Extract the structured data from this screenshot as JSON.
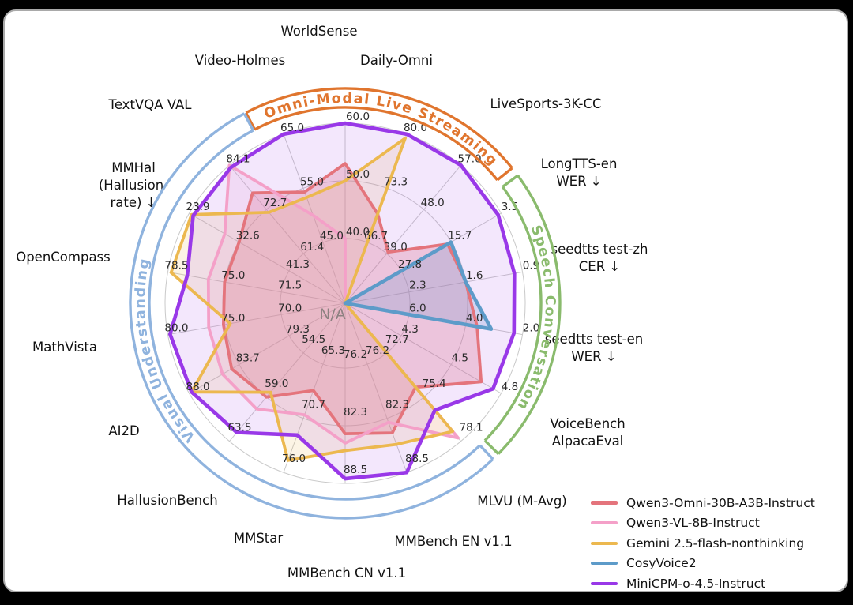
{
  "center_label": "N/A",
  "legend": {
    "items": [
      {
        "label": "Qwen3-Omni-30B-A3B-Instruct",
        "color": "#e4747c"
      },
      {
        "label": "Qwen3-VL-8B-Instruct",
        "color": "#f4a0c8"
      },
      {
        "label": "Gemini 2.5-flash-nonthinking",
        "color": "#ecb84f"
      },
      {
        "label": "CosyVoice2",
        "color": "#5d9bc9"
      },
      {
        "label": "MiniCPM-o-4.5-Instruct",
        "color": "#9938e8"
      }
    ]
  },
  "chart_data": {
    "type": "radar",
    "rings": 3,
    "center_label": "N/A",
    "axes": [
      {
        "label": "WorldSense",
        "label_lines": [
          "WorldSense"
        ],
        "ticks": [
          "60.0",
          "50.0",
          "40.0"
        ],
        "inverted": false
      },
      {
        "label": "Daily-Omni",
        "label_lines": [
          "Daily-Omni"
        ],
        "ticks": [
          "80.0",
          "73.3",
          "66.7"
        ],
        "inverted": false
      },
      {
        "label": "LiveSports-3K-CC",
        "label_lines": [
          "LiveSports-3K-CC"
        ],
        "ticks": [
          "57.0",
          "48.0",
          "39.0"
        ],
        "inverted": false
      },
      {
        "label": "LongTTS-en WER ↓",
        "label_lines": [
          "LongTTS-en",
          "WER ↓"
        ],
        "ticks": [
          "3.5",
          "15.7",
          "27.8"
        ],
        "inverted": true
      },
      {
        "label": "seedtts test-zh CER ↓",
        "label_lines": [
          "seedtts test-zh",
          "CER ↓"
        ],
        "ticks": [
          "0.9",
          "1.6",
          "2.3"
        ],
        "inverted": true
      },
      {
        "label": "seedtts test-en WER ↓",
        "label_lines": [
          "seedtts test-en",
          "WER ↓"
        ],
        "ticks": [
          "2.0",
          "4.0",
          "6.0"
        ],
        "inverted": true
      },
      {
        "label": "VoiceBench AlpacaEval",
        "label_lines": [
          "VoiceBench",
          "AlpacaEval"
        ],
        "ticks": [
          "4.8",
          "4.5",
          "4.3"
        ],
        "inverted": false
      },
      {
        "label": "MLVU (M-Avg)",
        "label_lines": [
          "MLVU (M-Avg)"
        ],
        "ticks": [
          "78.1",
          "75.4",
          "72.7"
        ],
        "inverted": false
      },
      {
        "label": "MMBench EN v1.1",
        "label_lines": [
          "MMBench EN v1.1"
        ],
        "ticks": [
          "88.5",
          "82.3",
          "76.2"
        ],
        "inverted": false
      },
      {
        "label": "MMBench CN v1.1",
        "label_lines": [
          "MMBench CN v1.1"
        ],
        "ticks": [
          "88.5",
          "82.3",
          "76.2"
        ],
        "inverted": false
      },
      {
        "label": "MMStar",
        "label_lines": [
          "MMStar"
        ],
        "ticks": [
          "76.0",
          "70.7",
          "65.3"
        ],
        "inverted": false
      },
      {
        "label": "HallusionBench",
        "label_lines": [
          "HallusionBench"
        ],
        "ticks": [
          "63.5",
          "59.0",
          "54.5"
        ],
        "inverted": false
      },
      {
        "label": "AI2D",
        "label_lines": [
          "AI2D"
        ],
        "ticks": [
          "88.0",
          "83.7",
          "79.3"
        ],
        "inverted": false
      },
      {
        "label": "MathVista",
        "label_lines": [
          "MathVista"
        ],
        "ticks": [
          "80.0",
          "75.0",
          "70.0"
        ],
        "inverted": false
      },
      {
        "label": "OpenCompass",
        "label_lines": [
          "OpenCompass"
        ],
        "ticks": [
          "78.5",
          "75.0",
          "71.5"
        ],
        "inverted": false
      },
      {
        "label": "MMHal (Hallusion-rate) ↓",
        "label_lines": [
          "MMHal",
          "(Hallusion-",
          "rate) ↓"
        ],
        "ticks": [
          "23.9",
          "32.6",
          "41.3"
        ],
        "inverted": true
      },
      {
        "label": "TextVQA VAL",
        "label_lines": [
          "TextVQA VAL"
        ],
        "ticks": [
          "84.1",
          "72.7",
          "61.4"
        ],
        "inverted": false
      },
      {
        "label": "Video-Holmes",
        "label_lines": [
          "Video-Holmes"
        ],
        "ticks": [
          "65.0",
          "55.0",
          "45.0"
        ],
        "inverted": false
      }
    ],
    "series": [
      {
        "name": "Qwen3-Omni-30B-A3B-Instruct",
        "color": "#e4747c",
        "fill_opacity": 0.28,
        "values": [
          53.0,
          70.2,
          39.3,
          16.5,
          1.6,
          3.6,
          4.7,
          74.8,
          84.0,
          83.2,
          67.9,
          59.0,
          84.3,
          75.1,
          75.0,
          32.6,
          77.0,
          54.3
        ]
      },
      {
        "name": "Qwen3-VL-8B-Instruct",
        "color": "#f4a0c8",
        "fill_opacity": 0.15,
        "values": [
          40.0,
          null,
          null,
          null,
          null,
          null,
          null,
          77.9,
          82.8,
          84.2,
          70.3,
          60.2,
          85.1,
          76.4,
          76.0,
          30.1,
          84.1,
          50.0
        ]
      },
      {
        "name": "Gemini 2.5-flash-nonthinking",
        "color": "#ecb84f",
        "fill_opacity": 0.15,
        "values": [
          50.0,
          79.5,
          null,
          null,
          null,
          null,
          null,
          77.5,
          85.3,
          85.0,
          74.8,
          58.5,
          87.8,
          74.5,
          78.3,
          24.3,
          72.0,
          53.3
        ]
      },
      {
        "name": "CosyVoice2",
        "color": "#5d9bc9",
        "fill_opacity": 0.22,
        "values": [
          null,
          null,
          null,
          15.7,
          1.6,
          3.1,
          null,
          null,
          null,
          null,
          null,
          null,
          null,
          null,
          null,
          null,
          null,
          null
        ]
      },
      {
        "name": "MiniCPM-o-4.5-Instruct",
        "color": "#9938e8",
        "fill_opacity": 0.12,
        "values": [
          60.0,
          80.0,
          57.0,
          4.2,
          1.0,
          2.3,
          4.76,
          76.2,
          88.5,
          88.0,
          72.3,
          62.6,
          87.8,
          79.8,
          77.3,
          24.6,
          83.6,
          65.0
        ]
      }
    ],
    "sectors": [
      {
        "label": "Omni-Modal Live Streaming",
        "color": "#e0752e",
        "a0": 117.5,
        "a1": 39,
        "t0": 113,
        "t1": 43
      },
      {
        "label": "Speech Conversation",
        "color": "#8abb6d",
        "a0": 36.5,
        "a1": -44.5,
        "t0": 32,
        "t1": -41
      },
      {
        "label": "Visual Understanding",
        "color": "#8fb3de",
        "a0": -46.5,
        "a1": 118,
        "t0": 237,
        "t1": 152,
        "long": true
      }
    ]
  }
}
